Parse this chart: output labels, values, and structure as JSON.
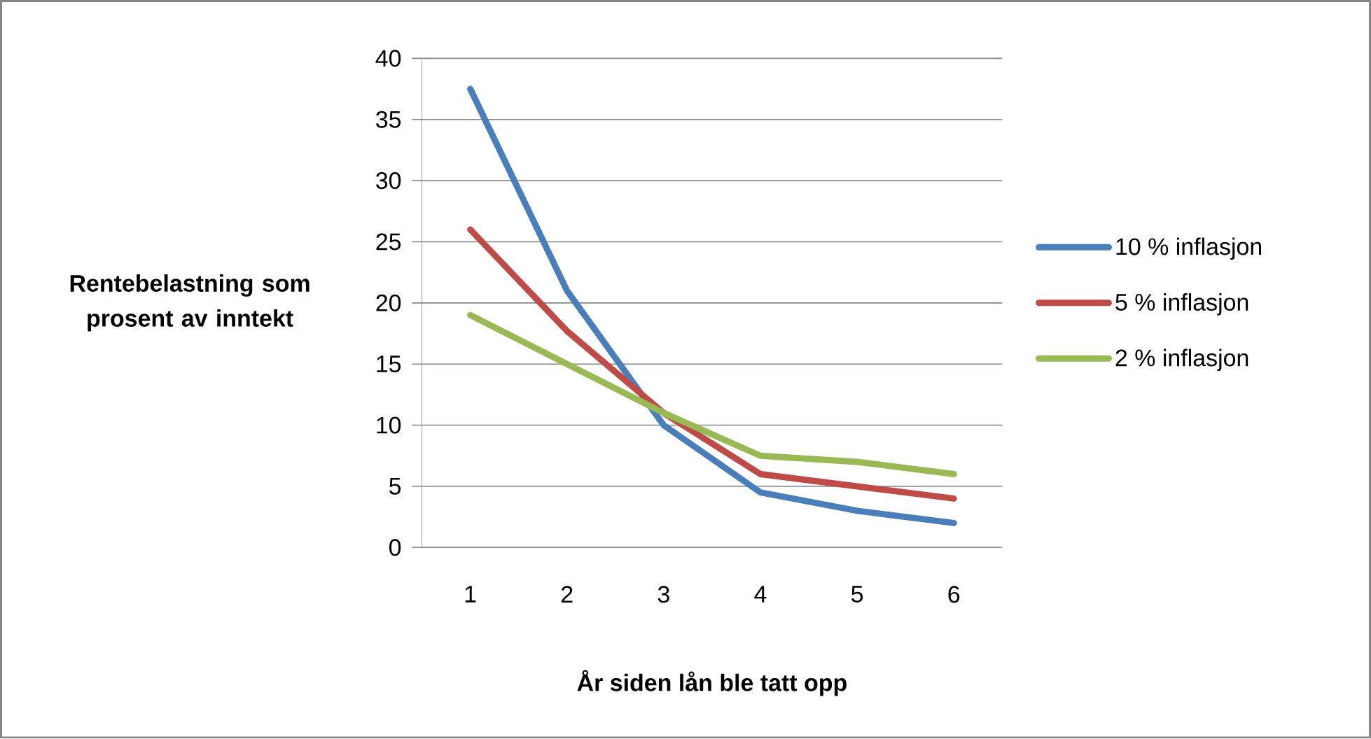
{
  "chart_data": {
    "type": "line",
    "ylabel": "Rentebelastning som prosent av inntekt",
    "xlabel": "År siden lån ble tatt opp",
    "categories": [
      "1",
      "2",
      "3",
      "4",
      "5",
      "6"
    ],
    "series": [
      {
        "name": "10 % inflasjon",
        "color": "#4a7ebb",
        "values": [
          37.5,
          21,
          10,
          4.5,
          3,
          2
        ]
      },
      {
        "name": "5 % inflasjon",
        "color": "#be4b48",
        "values": [
          26,
          17.7,
          11,
          6,
          5,
          4
        ]
      },
      {
        "name": "2 % inflasjon",
        "color": "#98b954",
        "values": [
          19,
          15,
          11,
          7.5,
          7,
          6
        ]
      }
    ],
    "ylim": [
      0,
      40
    ],
    "yticks": [
      0,
      5,
      10,
      15,
      20,
      25,
      30,
      35,
      40
    ],
    "grid": "y",
    "legend": "right",
    "marker": "none",
    "line_style": "solid"
  }
}
